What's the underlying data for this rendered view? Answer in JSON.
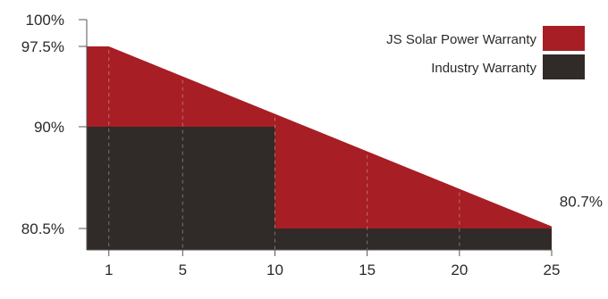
{
  "chart_data": {
    "type": "area",
    "x": [
      0,
      1,
      5,
      10,
      15,
      20,
      25
    ],
    "xticks": [
      1,
      5,
      10,
      15,
      20,
      25
    ],
    "xlim": [
      -0.2,
      25
    ],
    "ylim": [
      78.5,
      100
    ],
    "yticks": [
      {
        "value": 100,
        "label": "100%"
      },
      {
        "value": 97.5,
        "label": "97.5%"
      },
      {
        "value": 90,
        "label": "90%"
      },
      {
        "value": 80.5,
        "label": "80.5%"
      }
    ],
    "series": [
      {
        "name": "JS Solar Power Warranty",
        "color": "#a71e24",
        "points": [
          [
            -0.2,
            97.5
          ],
          [
            1,
            97.5
          ],
          [
            25,
            80.7
          ]
        ]
      },
      {
        "name": "Industry Warranty",
        "color": "#302a28",
        "points": [
          [
            -0.2,
            90
          ],
          [
            10,
            90
          ],
          [
            10,
            80.5
          ],
          [
            25,
            80.5
          ]
        ]
      }
    ],
    "annotations": [
      {
        "x": 25,
        "y": 80.7,
        "text": "80.7%"
      }
    ],
    "legend": "top-right",
    "grid": "dashed-vertical"
  }
}
